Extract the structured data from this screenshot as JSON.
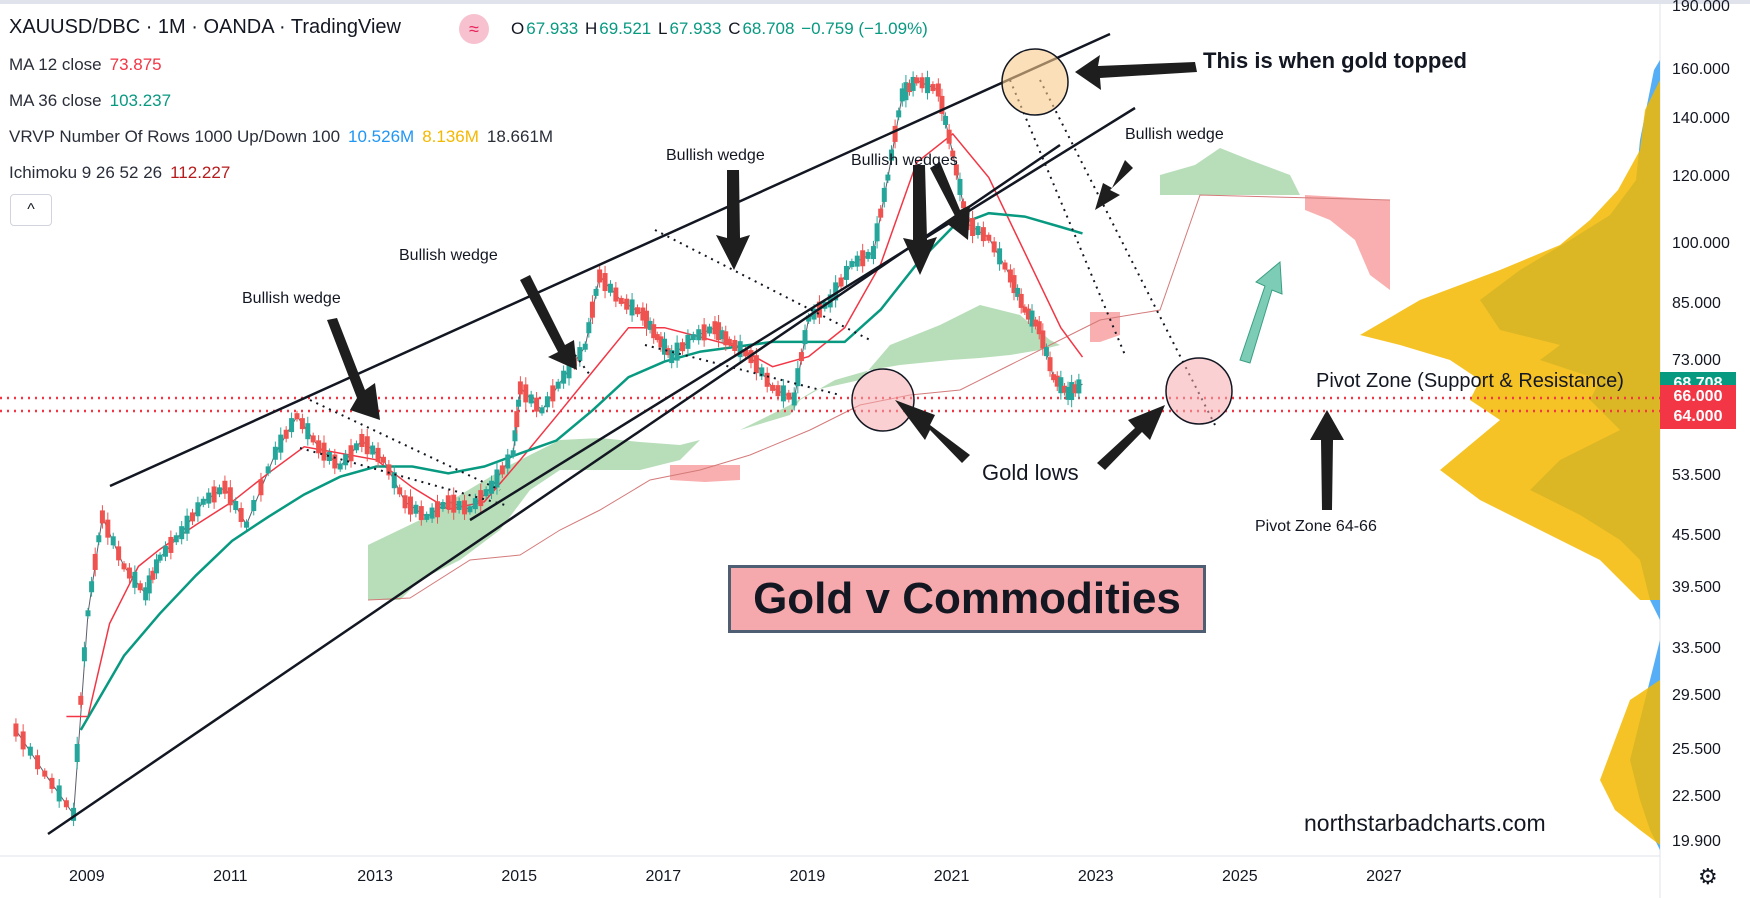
{
  "header": {
    "symbol_line": "XAUUSD/DBC · 1M · OANDA · TradingView",
    "wave_icon": "wave-icon",
    "ohlc": {
      "o_label": "O",
      "o": "67.933",
      "h_label": "H",
      "h": "69.521",
      "l_label": "L",
      "l": "67.933",
      "c_label": "C",
      "c": "68.708",
      "change": "−0.759 (−1.09%)"
    }
  },
  "indicators": {
    "ma12": {
      "label": "MA 12 close",
      "value": "73.875",
      "color": "#f23645"
    },
    "ma36": {
      "label": "MA 36 close",
      "value": "103.237",
      "color": "#089981"
    },
    "vrvp": {
      "label": "VRVP Number Of Rows 1000 Up/Down 100",
      "up": "10.526M",
      "down": "8.136M",
      "total": "18.661M",
      "up_color": "#2196f3",
      "down_color": "#f5b800"
    },
    "ichimoku": {
      "label": "Ichimoku 9 26 52 26",
      "value": "112.227",
      "color": "#b71c1c"
    },
    "collapse_glyph": "^"
  },
  "chart_data": {
    "type": "line",
    "title": "Gold v Commodities",
    "x_ticks": [
      "2009",
      "2011",
      "2013",
      "2015",
      "2017",
      "2019",
      "2021",
      "2023",
      "2025",
      "2027"
    ],
    "y_ticks": [
      "190.000",
      "160.000",
      "140.000",
      "120.000",
      "100.000",
      "85.000",
      "73.000",
      "53.500",
      "45.500",
      "39.500",
      "33.500",
      "29.500",
      "25.500",
      "22.500",
      "19.900"
    ],
    "y_scale": "log",
    "price_labels": [
      {
        "value": "68.708",
        "color": "#089981"
      },
      {
        "value": "66.000",
        "color": "#f23645"
      },
      {
        "value": "64.000",
        "color": "#f23645"
      }
    ],
    "series": [
      {
        "name": "XAUUSD/DBC",
        "points": [
          [
            2008.0,
            27
          ],
          [
            2008.4,
            24
          ],
          [
            2008.8,
            21.5
          ],
          [
            2009.0,
            37
          ],
          [
            2009.2,
            48
          ],
          [
            2009.5,
            42
          ],
          [
            2009.8,
            39
          ],
          [
            2010.0,
            43
          ],
          [
            2010.3,
            46
          ],
          [
            2010.6,
            50
          ],
          [
            2010.9,
            52
          ],
          [
            2011.2,
            47
          ],
          [
            2011.6,
            57
          ],
          [
            2011.9,
            63
          ],
          [
            2012.2,
            58
          ],
          [
            2012.5,
            55
          ],
          [
            2012.8,
            59
          ],
          [
            2013.1,
            56
          ],
          [
            2013.4,
            50
          ],
          [
            2013.7,
            48
          ],
          [
            2014.0,
            50
          ],
          [
            2014.3,
            49
          ],
          [
            2014.6,
            52
          ],
          [
            2014.9,
            57
          ],
          [
            2015.0,
            68
          ],
          [
            2015.3,
            64
          ],
          [
            2015.6,
            70
          ],
          [
            2015.9,
            76
          ],
          [
            2016.1,
            92
          ],
          [
            2016.4,
            86
          ],
          [
            2016.7,
            83
          ],
          [
            2016.9,
            78
          ],
          [
            2017.1,
            74
          ],
          [
            2017.4,
            78
          ],
          [
            2017.7,
            80
          ],
          [
            2017.9,
            77
          ],
          [
            2018.2,
            74
          ],
          [
            2018.5,
            68
          ],
          [
            2018.8,
            66
          ],
          [
            2019.0,
            82
          ],
          [
            2019.3,
            86
          ],
          [
            2019.6,
            95
          ],
          [
            2019.9,
            98
          ],
          [
            2020.1,
            120
          ],
          [
            2020.3,
            150
          ],
          [
            2020.5,
            156
          ],
          [
            2020.8,
            152
          ],
          [
            2021.0,
            128
          ],
          [
            2021.2,
            106
          ],
          [
            2021.5,
            102
          ],
          [
            2021.8,
            92
          ],
          [
            2022.0,
            84
          ],
          [
            2022.2,
            80
          ],
          [
            2022.4,
            70
          ],
          [
            2022.6,
            67
          ],
          [
            2022.8,
            68.7
          ]
        ]
      },
      {
        "name": "MA 12 close",
        "points": [
          [
            2008.7,
            28
          ],
          [
            2009.0,
            28
          ],
          [
            2009.3,
            36
          ],
          [
            2009.7,
            42
          ],
          [
            2010.0,
            44
          ],
          [
            2010.5,
            47
          ],
          [
            2011.0,
            50
          ],
          [
            2011.5,
            54
          ],
          [
            2012.0,
            58
          ],
          [
            2012.5,
            57
          ],
          [
            2013.0,
            56
          ],
          [
            2013.5,
            52
          ],
          [
            2014.0,
            49
          ],
          [
            2014.5,
            50
          ],
          [
            2015.0,
            56
          ],
          [
            2015.5,
            63
          ],
          [
            2016.0,
            71
          ],
          [
            2016.5,
            80
          ],
          [
            2017.0,
            80
          ],
          [
            2017.5,
            78
          ],
          [
            2018.0,
            76
          ],
          [
            2018.5,
            72
          ],
          [
            2019.0,
            74
          ],
          [
            2019.5,
            80
          ],
          [
            2020.0,
            95
          ],
          [
            2020.5,
            125
          ],
          [
            2021.0,
            135
          ],
          [
            2021.5,
            120
          ],
          [
            2022.0,
            98
          ],
          [
            2022.5,
            80
          ],
          [
            2022.8,
            73.9
          ]
        ]
      },
      {
        "name": "MA 36 close",
        "points": [
          [
            2008.9,
            27
          ],
          [
            2009.5,
            33
          ],
          [
            2010.0,
            37
          ],
          [
            2010.5,
            41
          ],
          [
            2011.0,
            45
          ],
          [
            2011.5,
            48
          ],
          [
            2012.0,
            51
          ],
          [
            2012.5,
            53.5
          ],
          [
            2013.0,
            55
          ],
          [
            2013.5,
            55
          ],
          [
            2014.0,
            54
          ],
          [
            2014.5,
            55
          ],
          [
            2015.0,
            57
          ],
          [
            2015.5,
            59
          ],
          [
            2016.0,
            64
          ],
          [
            2016.5,
            70
          ],
          [
            2017.0,
            73
          ],
          [
            2017.5,
            75
          ],
          [
            2018.0,
            76
          ],
          [
            2018.5,
            77
          ],
          [
            2019.0,
            77
          ],
          [
            2019.5,
            77
          ],
          [
            2020.0,
            84
          ],
          [
            2020.5,
            95
          ],
          [
            2021.0,
            105
          ],
          [
            2021.5,
            109
          ],
          [
            2022.0,
            108
          ],
          [
            2022.5,
            105
          ],
          [
            2022.8,
            103.2
          ]
        ]
      }
    ],
    "grid": false,
    "legend": "top-left"
  },
  "annotations": {
    "top_label": "This is when gold topped",
    "wedge_1": "Bullish wedge",
    "wedge_2": "Bullish wedge",
    "wedge_3": "Bullish wedge",
    "wedges_4": "Bullish wedges",
    "wedge_5": "Bullish wedge",
    "gold_lows": "Gold lows",
    "pivot_zone": "Pivot Zone (Support & Resistance)",
    "pivot_range": "Pivot Zone 64-66",
    "watermark": "northstarbadcharts.com"
  },
  "footer": {
    "settings_icon": "gear-icon"
  }
}
